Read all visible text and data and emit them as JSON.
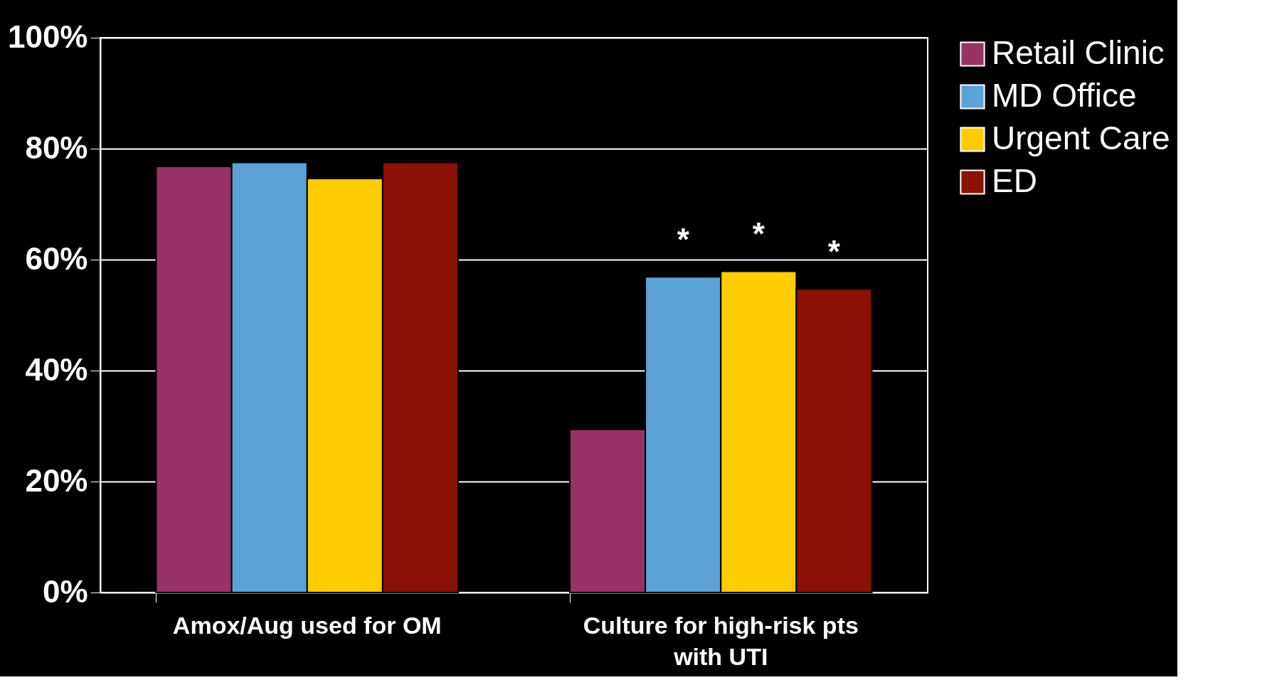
{
  "chart_data": {
    "type": "bar",
    "categories": [
      "Amox/Aug used for OM",
      "Culture for high-risk pts\nwith UTI"
    ],
    "series": [
      {
        "name": "Retail Clinic",
        "color": "#993366",
        "values": [
          76.8,
          29.4
        ]
      },
      {
        "name": "MD Office",
        "color": "#5ba3d6",
        "values": [
          77.5,
          56.9
        ],
        "value_labels": [
          null,
          "*"
        ]
      },
      {
        "name": "Urgent Care",
        "color": "#ffcc00",
        "values": [
          74.6,
          57.9
        ],
        "value_labels": [
          null,
          "*"
        ]
      },
      {
        "name": "ED",
        "color": "#8b1005",
        "values": [
          77.5,
          54.7
        ],
        "value_labels": [
          null,
          "*"
        ]
      }
    ],
    "ylim": [
      0,
      100
    ],
    "yticks": [
      {
        "value": 0,
        "label": "0%"
      },
      {
        "value": 20,
        "label": "20%"
      },
      {
        "value": 40,
        "label": "40%"
      },
      {
        "value": 60,
        "label": "60%"
      },
      {
        "value": 80,
        "label": "80%"
      },
      {
        "value": 100,
        "label": "100%"
      }
    ],
    "grid": "y",
    "legend": "right"
  }
}
